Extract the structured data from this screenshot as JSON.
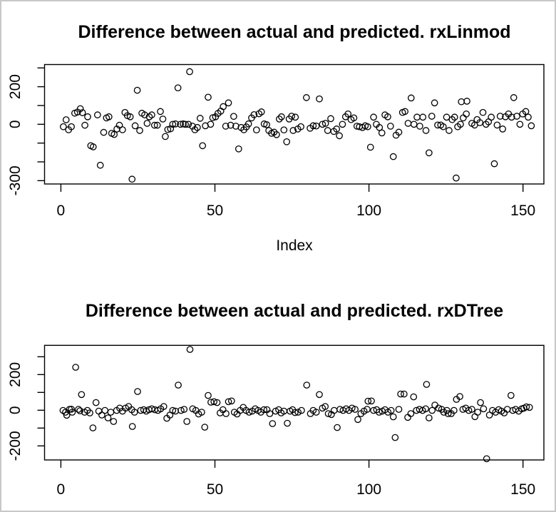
{
  "frame": {
    "border_color": "#c8c8c8",
    "background": "#ffffff"
  },
  "chart_data": [
    {
      "type": "scatter",
      "title": "Difference between actual and predicted. rxLinmod",
      "xlabel": "Index",
      "ylabel": "",
      "marker": "open-circle",
      "point_color": "#000000",
      "grid": false,
      "legend": null,
      "xticks": [
        0,
        50,
        100,
        150
      ],
      "yticks": [
        300,
        200,
        100,
        0,
        -100,
        -200,
        -300
      ],
      "yticks_labeled": [
        200,
        0,
        -300
      ],
      "xlim": [
        -5.3,
        156.8
      ],
      "ylim": [
        -318,
        318
      ],
      "points": [
        [
          0.8,
          -13
        ],
        [
          1.7,
          24
        ],
        [
          2.5,
          -29
        ],
        [
          3.4,
          -13
        ],
        [
          4.5,
          59
        ],
        [
          5.4,
          65
        ],
        [
          6.3,
          83
        ],
        [
          7,
          62
        ],
        [
          7.8,
          -5
        ],
        [
          8.7,
          40
        ],
        [
          9.7,
          -114
        ],
        [
          10.5,
          -120
        ],
        [
          11.9,
          50
        ],
        [
          12.8,
          -218
        ],
        [
          13.9,
          -43
        ],
        [
          14.8,
          34
        ],
        [
          15.6,
          40
        ],
        [
          16.5,
          -48
        ],
        [
          17.3,
          -54
        ],
        [
          18.2,
          -25
        ],
        [
          19,
          -5
        ],
        [
          20,
          -29
        ],
        [
          20.8,
          63
        ],
        [
          21.6,
          46
        ],
        [
          22.5,
          40
        ],
        [
          23.1,
          -292
        ],
        [
          24.1,
          -8
        ],
        [
          24.8,
          181
        ],
        [
          25.6,
          -33
        ],
        [
          26.3,
          59
        ],
        [
          27.2,
          50
        ],
        [
          28,
          5
        ],
        [
          28.7,
          40
        ],
        [
          29.5,
          50
        ],
        [
          30.4,
          -5
        ],
        [
          31.3,
          -5
        ],
        [
          32.3,
          68
        ],
        [
          33.1,
          28
        ],
        [
          33.9,
          -65
        ],
        [
          34.7,
          -28
        ],
        [
          35.6,
          -24
        ],
        [
          36.3,
          0
        ],
        [
          37.2,
          2
        ],
        [
          38,
          194
        ],
        [
          38.8,
          0
        ],
        [
          39.7,
          2
        ],
        [
          40.4,
          0
        ],
        [
          41.4,
          0
        ],
        [
          41.8,
          280
        ],
        [
          42.7,
          -10
        ],
        [
          43.5,
          -29
        ],
        [
          44.3,
          -17
        ],
        [
          45.2,
          32
        ],
        [
          46,
          -114
        ],
        [
          46.9,
          -8
        ],
        [
          47.8,
          144
        ],
        [
          48.6,
          0
        ],
        [
          49.3,
          35
        ],
        [
          50.2,
          40
        ],
        [
          51,
          58
        ],
        [
          51.9,
          70
        ],
        [
          52.7,
          94
        ],
        [
          53.5,
          -10
        ],
        [
          54.4,
          114
        ],
        [
          55.1,
          -5
        ],
        [
          56.1,
          42
        ],
        [
          56.8,
          -10
        ],
        [
          57.7,
          -131
        ],
        [
          58.5,
          -17
        ],
        [
          59.4,
          -29
        ],
        [
          60.2,
          -14
        ],
        [
          60.9,
          2
        ],
        [
          61.9,
          34
        ],
        [
          62.7,
          51
        ],
        [
          63.5,
          -30
        ],
        [
          64.3,
          56
        ],
        [
          65.1,
          66
        ],
        [
          66,
          2
        ],
        [
          66.8,
          -2
        ],
        [
          67.5,
          -33
        ],
        [
          68.4,
          -48
        ],
        [
          69.2,
          -42
        ],
        [
          70,
          -55
        ],
        [
          70.9,
          28
        ],
        [
          71.6,
          40
        ],
        [
          72.4,
          -30
        ],
        [
          73.3,
          -93
        ],
        [
          74.1,
          28
        ],
        [
          74.9,
          43
        ],
        [
          75.4,
          -33
        ],
        [
          76.1,
          38
        ],
        [
          76.9,
          -25
        ],
        [
          77.9,
          -13
        ],
        [
          79.7,
          142
        ],
        [
          80.9,
          -21
        ],
        [
          81.9,
          -8
        ],
        [
          82.9,
          -9
        ],
        [
          83.9,
          135
        ],
        [
          84.9,
          0
        ],
        [
          85.9,
          5
        ],
        [
          86.6,
          -33
        ],
        [
          87.6,
          30
        ],
        [
          88.6,
          -38
        ],
        [
          89.5,
          -25
        ],
        [
          90.4,
          -61
        ],
        [
          91.4,
          0
        ],
        [
          92.4,
          40
        ],
        [
          93.2,
          55
        ],
        [
          94.2,
          25
        ],
        [
          95.1,
          34
        ],
        [
          96.1,
          -10
        ],
        [
          96.9,
          -13
        ],
        [
          97.9,
          -17
        ],
        [
          98.8,
          -8
        ],
        [
          99.6,
          -13
        ],
        [
          100.5,
          -122
        ],
        [
          101.5,
          38
        ],
        [
          102.4,
          0
        ],
        [
          103.4,
          -17
        ],
        [
          104.2,
          -46
        ],
        [
          105.2,
          50
        ],
        [
          106.1,
          40
        ],
        [
          107,
          -10
        ],
        [
          107.9,
          -172
        ],
        [
          108.8,
          -58
        ],
        [
          109.7,
          -42
        ],
        [
          110.9,
          63
        ],
        [
          111.7,
          68
        ],
        [
          112.7,
          5
        ],
        [
          113.7,
          140
        ],
        [
          114.6,
          0
        ],
        [
          115.6,
          38
        ],
        [
          116.5,
          -10
        ],
        [
          117.5,
          38
        ],
        [
          118.5,
          -33
        ],
        [
          119.5,
          -152
        ],
        [
          120.4,
          43
        ],
        [
          121.3,
          114
        ],
        [
          122.3,
          -4
        ],
        [
          123.3,
          -4
        ],
        [
          124.1,
          -13
        ],
        [
          125.2,
          38
        ],
        [
          126,
          -33
        ],
        [
          127,
          25
        ],
        [
          127.8,
          38
        ],
        [
          128.3,
          -286
        ],
        [
          128.8,
          -13
        ],
        [
          129.7,
          0
        ],
        [
          130,
          120
        ],
        [
          130.6,
          34
        ],
        [
          131.6,
          55
        ],
        [
          131.8,
          123
        ],
        [
          133.4,
          5
        ],
        [
          134.3,
          -4
        ],
        [
          135.1,
          25
        ],
        [
          136,
          9
        ],
        [
          137,
          63
        ],
        [
          138,
          0
        ],
        [
          138.8,
          13
        ],
        [
          139.7,
          38
        ],
        [
          140.7,
          -210
        ],
        [
          141.6,
          -4
        ],
        [
          142.6,
          43
        ],
        [
          143.4,
          -25
        ],
        [
          144.3,
          40
        ],
        [
          145.3,
          55
        ],
        [
          146.3,
          38
        ],
        [
          147,
          142
        ],
        [
          148,
          43
        ],
        [
          149,
          0
        ],
        [
          149.9,
          55
        ],
        [
          150.9,
          68
        ],
        [
          151.7,
          38
        ],
        [
          152.7,
          -8
        ]
      ]
    },
    {
      "type": "scatter",
      "title": "Difference between actual and predicted. rxDTree",
      "xlabel": "",
      "ylabel": "",
      "marker": "open-circle",
      "point_color": "#000000",
      "grid": false,
      "legend": null,
      "xticks": [
        0,
        50,
        100,
        150
      ],
      "yticks": [
        300,
        200,
        100,
        0,
        -100,
        -200
      ],
      "yticks_labeled": [
        200,
        0,
        -200
      ],
      "xlim": [
        -5.3,
        156.8
      ],
      "ylim": [
        -279,
        364
      ],
      "points": [
        [
          0.7,
          -1
        ],
        [
          1.5,
          -11
        ],
        [
          1.9,
          -28
        ],
        [
          2.8,
          5
        ],
        [
          3.4,
          6
        ],
        [
          3.7,
          -11
        ],
        [
          4.8,
          241
        ],
        [
          5.7,
          5
        ],
        [
          6.2,
          -3
        ],
        [
          6.7,
          88
        ],
        [
          7.7,
          -11
        ],
        [
          8.6,
          -1
        ],
        [
          9.4,
          -15
        ],
        [
          10.4,
          -99
        ],
        [
          11.4,
          43
        ],
        [
          12.3,
          -5
        ],
        [
          13.3,
          -27
        ],
        [
          14.3,
          -1
        ],
        [
          15.3,
          -43
        ],
        [
          16.2,
          -11
        ],
        [
          17.1,
          -63
        ],
        [
          18.1,
          -1
        ],
        [
          19.1,
          12
        ],
        [
          20,
          -5
        ],
        [
          21,
          12
        ],
        [
          22,
          21
        ],
        [
          23,
          3
        ],
        [
          23.2,
          -91
        ],
        [
          23.9,
          -11
        ],
        [
          24.9,
          105
        ],
        [
          25.9,
          -1
        ],
        [
          26.9,
          3
        ],
        [
          27.7,
          -5
        ],
        [
          28.6,
          3
        ],
        [
          29.5,
          8
        ],
        [
          30.5,
          3
        ],
        [
          31.5,
          -1
        ],
        [
          32.4,
          8
        ],
        [
          33.4,
          21
        ],
        [
          34.4,
          -45
        ],
        [
          35.4,
          -27
        ],
        [
          36.3,
          -1
        ],
        [
          37.2,
          -5
        ],
        [
          38.1,
          141
        ],
        [
          39,
          -1
        ],
        [
          40,
          5
        ],
        [
          40.9,
          -63
        ],
        [
          41.9,
          341
        ],
        [
          42.8,
          8
        ],
        [
          43.8,
          -1
        ],
        [
          44.7,
          -21
        ],
        [
          45.7,
          -11
        ],
        [
          46.7,
          -95
        ],
        [
          47.8,
          83
        ],
        [
          48.7,
          45
        ],
        [
          49.7,
          48
        ],
        [
          50.7,
          43
        ],
        [
          51.7,
          -15
        ],
        [
          52.6,
          3
        ],
        [
          53.6,
          -19
        ],
        [
          54.4,
          48
        ],
        [
          55.4,
          52
        ],
        [
          56.3,
          -11
        ],
        [
          57.2,
          -21
        ],
        [
          58.2,
          -1
        ],
        [
          59.2,
          16
        ],
        [
          60.1,
          -1
        ],
        [
          61.1,
          -11
        ],
        [
          62.1,
          -5
        ],
        [
          63.1,
          8
        ],
        [
          64,
          -1
        ],
        [
          64.9,
          -11
        ],
        [
          65.9,
          3
        ],
        [
          66.9,
          3
        ],
        [
          67.8,
          -19
        ],
        [
          68.7,
          -75
        ],
        [
          69.7,
          -5
        ],
        [
          70.7,
          3
        ],
        [
          71.5,
          -15
        ],
        [
          72.4,
          -5
        ],
        [
          73.5,
          -73
        ],
        [
          74.4,
          -5
        ],
        [
          75.2,
          3
        ],
        [
          76,
          -13
        ],
        [
          77,
          -11
        ],
        [
          78.1,
          -1
        ],
        [
          79.8,
          141
        ],
        [
          81,
          -19
        ],
        [
          81.9,
          -1
        ],
        [
          82.9,
          -11
        ],
        [
          83.9,
          88
        ],
        [
          84.9,
          12
        ],
        [
          85.8,
          21
        ],
        [
          86.8,
          -19
        ],
        [
          87.8,
          -24
        ],
        [
          88.7,
          -1
        ],
        [
          89.7,
          -97
        ],
        [
          90.6,
          5
        ],
        [
          91.6,
          -1
        ],
        [
          92.6,
          8
        ],
        [
          93.5,
          -1
        ],
        [
          94.5,
          12
        ],
        [
          95.5,
          5
        ],
        [
          96.4,
          -52
        ],
        [
          97.4,
          -19
        ],
        [
          98.4,
          -5
        ],
        [
          99.4,
          5
        ],
        [
          99.7,
          51
        ],
        [
          100.8,
          52
        ],
        [
          101.5,
          -1
        ],
        [
          102.5,
          3
        ],
        [
          103.3,
          -11
        ],
        [
          104.3,
          -5
        ],
        [
          105.2,
          3
        ],
        [
          106.2,
          -11
        ],
        [
          107.2,
          -1
        ],
        [
          107.9,
          -37
        ],
        [
          108.5,
          -153
        ],
        [
          109.7,
          5
        ],
        [
          110.3,
          91
        ],
        [
          111.4,
          91
        ],
        [
          112.6,
          -40
        ],
        [
          113.6,
          -19
        ],
        [
          114.5,
          75
        ],
        [
          115.4,
          -1
        ],
        [
          116.4,
          5
        ],
        [
          117.4,
          -1
        ],
        [
          118.4,
          8
        ],
        [
          118.7,
          145
        ],
        [
          119.5,
          -43
        ],
        [
          120.5,
          -1
        ],
        [
          121.4,
          29
        ],
        [
          122.6,
          12
        ],
        [
          123.6,
          5
        ],
        [
          124.3,
          -11
        ],
        [
          125.3,
          -1
        ],
        [
          125.7,
          -19
        ],
        [
          126.7,
          -19
        ],
        [
          127.6,
          -1
        ],
        [
          128.4,
          61
        ],
        [
          129.5,
          77
        ],
        [
          130.5,
          5
        ],
        [
          131.4,
          12
        ],
        [
          132.4,
          -1
        ],
        [
          133.4,
          5
        ],
        [
          134.4,
          -36
        ],
        [
          135.3,
          -11
        ],
        [
          136.2,
          43
        ],
        [
          137.2,
          8
        ],
        [
          138.2,
          -272
        ],
        [
          139.1,
          -27
        ],
        [
          140.1,
          -1
        ],
        [
          141.1,
          -11
        ],
        [
          142.1,
          3
        ],
        [
          143,
          -5
        ],
        [
          143.9,
          -15
        ],
        [
          144.9,
          5
        ],
        [
          146.1,
          83
        ],
        [
          146.7,
          -1
        ],
        [
          147.6,
          5
        ],
        [
          148.6,
          -5
        ],
        [
          149.6,
          8
        ],
        [
          150.3,
          12
        ],
        [
          151.1,
          19
        ],
        [
          152.1,
          16
        ]
      ]
    }
  ]
}
